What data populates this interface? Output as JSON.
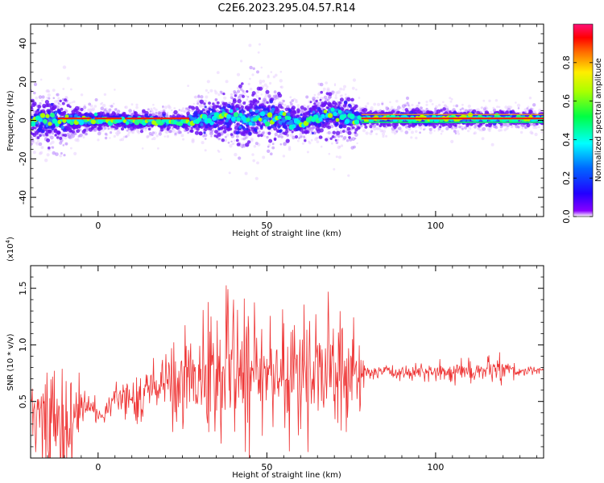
{
  "title": "C2E6.2023.295.04.57.R14",
  "chart_data": [
    {
      "type": "heatmap",
      "name": "spectrogram",
      "xlabel": "Height of straight line (km)",
      "ylabel": "Frequency (Hz)",
      "xlim": [
        -20,
        132
      ],
      "ylim": [
        -50,
        50
      ],
      "x_ticks": [
        0,
        50,
        100
      ],
      "y_ticks": [
        -40,
        -20,
        0,
        20,
        40
      ],
      "colorbar": {
        "label": "Normalized spectral amplitude",
        "ticks": [
          "0.0",
          "0.2",
          "0.4",
          "0.6",
          "0.8"
        ],
        "range": [
          0,
          1
        ]
      },
      "spread_profile": {
        "x": [
          -20,
          -10,
          -5,
          5,
          25,
          30,
          40,
          45,
          48,
          55,
          60,
          65,
          70,
          75,
          78,
          100,
          132
        ],
        "center_hz": [
          0,
          0,
          0,
          0,
          -1,
          1,
          2,
          0,
          3,
          1,
          -2,
          2,
          3,
          1,
          1,
          1,
          1
        ],
        "halfwidth_hz": [
          10,
          10,
          5,
          4,
          4,
          8,
          10,
          14,
          13,
          9,
          6,
          9,
          11,
          10,
          4,
          4,
          3
        ]
      }
    },
    {
      "type": "line",
      "name": "snr",
      "xlabel": "Height of straight line (km)",
      "ylabel": "SNR (10 * v/v)",
      "y_scale_note": "(x10",
      "y_scale_exp": "4",
      "xlim": [
        -20,
        132
      ],
      "ylim": [
        0,
        1.7
      ],
      "x_ticks": [
        0,
        50,
        100
      ],
      "y_ticks": [
        "0.5",
        "1.0",
        "1.5"
      ],
      "color": "#ee3333",
      "envelope": {
        "x": [
          -20,
          -15,
          -10,
          -5,
          -1,
          0,
          5,
          10,
          15,
          20,
          25,
          30,
          35,
          40,
          45,
          48,
          50,
          55,
          60,
          65,
          70,
          75,
          78,
          80,
          90,
          100,
          110,
          120,
          125,
          132
        ],
        "mean": [
          0.45,
          0.35,
          0.3,
          0.45,
          0.45,
          0.35,
          0.5,
          0.58,
          0.6,
          0.65,
          0.72,
          0.76,
          0.76,
          0.77,
          0.8,
          0.78,
          0.78,
          0.75,
          0.7,
          0.75,
          0.8,
          0.78,
          0.77,
          0.76,
          0.76,
          0.76,
          0.77,
          0.77,
          0.77,
          0.77
        ],
        "amp": [
          0.3,
          0.45,
          0.5,
          0.2,
          0.1,
          0.05,
          0.12,
          0.2,
          0.25,
          0.3,
          0.35,
          0.45,
          0.5,
          0.55,
          0.6,
          0.65,
          0.55,
          0.55,
          0.5,
          0.5,
          0.55,
          0.45,
          0.25,
          0.06,
          0.07,
          0.08,
          0.1,
          0.12,
          0.06,
          0.03
        ]
      }
    }
  ]
}
